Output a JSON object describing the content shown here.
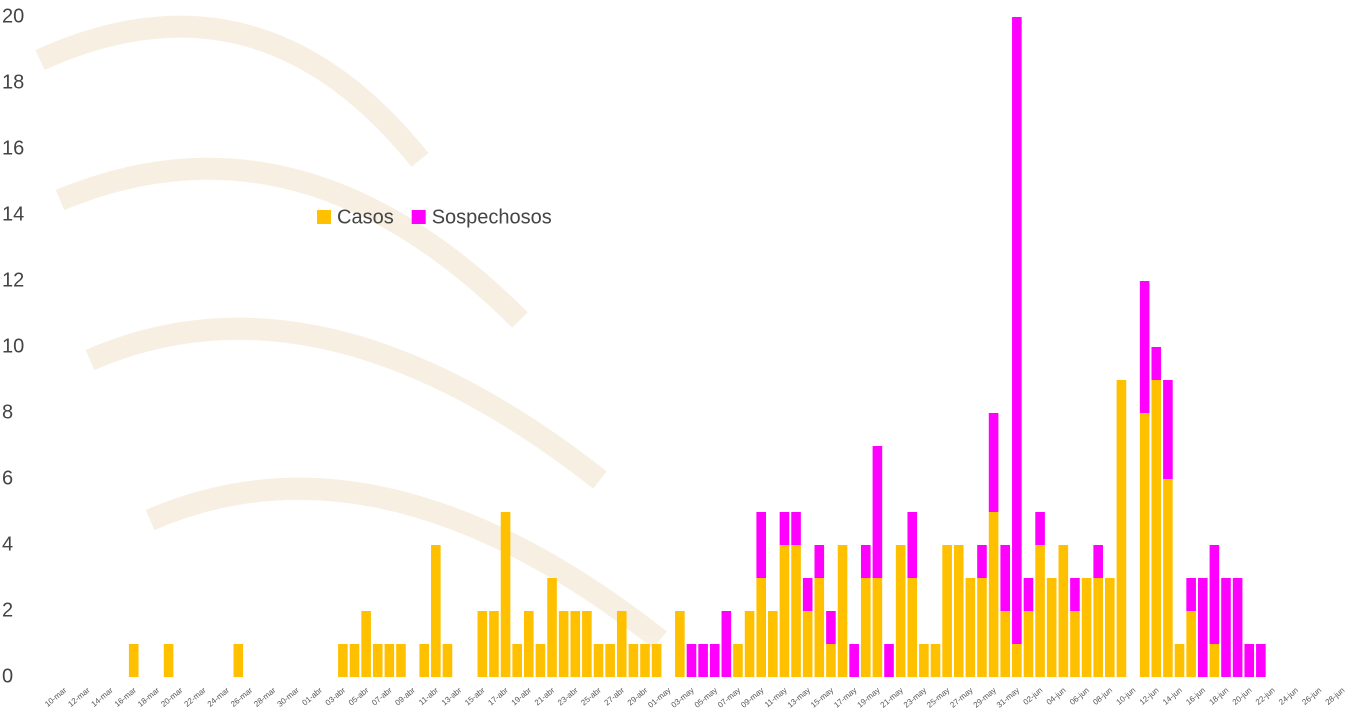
{
  "chart_data": {
    "type": "stacked_bar",
    "categories": [
      "10-mar",
      null,
      "12-mar",
      null,
      "14-mar",
      null,
      "16-mar",
      null,
      "18-mar",
      null,
      "20-mar",
      null,
      "22-mar",
      null,
      "24-mar",
      null,
      "26-mar",
      null,
      "28-mar",
      null,
      "30-mar",
      null,
      "01-abr",
      null,
      "03-abr",
      null,
      "05-abr",
      null,
      "07-abr",
      null,
      "09-abr",
      null,
      "11-abr",
      null,
      "13-abr",
      null,
      "15-abr",
      null,
      "17-abr",
      null,
      "19-abr",
      null,
      "21-abr",
      null,
      "23-abr",
      null,
      "25-abr",
      null,
      "27-abr",
      null,
      "29-abr",
      null,
      "01-may",
      null,
      "03-may",
      null,
      "05-may",
      null,
      "07-may",
      null,
      "09-may",
      null,
      "11-may",
      null,
      "13-may",
      null,
      "15-may",
      null,
      "17-may",
      null,
      "19-may",
      null,
      "21-may",
      null,
      "23-may",
      null,
      "25-may",
      null,
      "27-may",
      null,
      "29-may",
      null,
      "31-may",
      null,
      "02-jun",
      null,
      "04-jun",
      null,
      "06-jun",
      null,
      "08-jun",
      null,
      "10-jun",
      null,
      "12-jun",
      null,
      "14-jun",
      null,
      "16-jun",
      null,
      "18-jun",
      null,
      "20-jun",
      null,
      "22-jun",
      null,
      "24-jun",
      null,
      "26-jun",
      null,
      "28-jun"
    ],
    "series": [
      {
        "name": "Casos",
        "color": "#FFC000",
        "values": [
          0,
          0,
          0,
          0,
          0,
          0,
          1,
          0,
          0,
          1,
          0,
          0,
          0,
          0,
          0,
          1,
          0,
          0,
          0,
          0,
          0,
          0,
          0,
          0,
          1,
          1,
          2,
          1,
          1,
          1,
          0,
          1,
          4,
          1,
          0,
          0,
          2,
          2,
          5,
          1,
          2,
          1,
          3,
          2,
          2,
          2,
          1,
          1,
          2,
          1,
          1,
          1,
          0,
          2,
          0,
          0,
          0,
          0,
          1,
          2,
          3,
          2,
          4,
          4,
          2,
          3,
          1,
          4,
          0,
          3,
          3,
          0,
          4,
          3,
          1,
          1,
          4,
          4,
          3,
          3,
          5,
          2,
          1,
          2,
          4,
          3,
          4,
          2,
          3,
          3,
          3,
          9,
          0,
          8,
          9,
          6,
          1,
          2,
          0,
          1,
          0,
          0,
          0,
          0,
          0,
          0,
          0,
          0,
          0,
          0,
          0
        ]
      },
      {
        "name": "Sospechosos",
        "color": "#FF00FF",
        "values": [
          0,
          0,
          0,
          0,
          0,
          0,
          0,
          0,
          0,
          0,
          0,
          0,
          0,
          0,
          0,
          0,
          0,
          0,
          0,
          0,
          0,
          0,
          0,
          0,
          0,
          0,
          0,
          0,
          0,
          0,
          0,
          0,
          0,
          0,
          0,
          0,
          0,
          0,
          0,
          0,
          0,
          0,
          0,
          0,
          0,
          0,
          0,
          0,
          0,
          0,
          0,
          0,
          0,
          0,
          1,
          1,
          1,
          2,
          0,
          0,
          2,
          0,
          1,
          1,
          1,
          1,
          1,
          0,
          1,
          1,
          4,
          1,
          0,
          2,
          0,
          0,
          0,
          0,
          0,
          1,
          3,
          2,
          19,
          1,
          1,
          0,
          0,
          1,
          0,
          1,
          0,
          0,
          0,
          4,
          1,
          3,
          0,
          1,
          3,
          3,
          3,
          3,
          1,
          1,
          0,
          0,
          0,
          0,
          0,
          0,
          0
        ]
      }
    ],
    "ylim": [
      0,
      20
    ],
    "yticks": [
      0,
      2,
      4,
      6,
      8,
      10,
      12,
      14,
      16,
      18,
      20
    ],
    "grid": false
  }
}
